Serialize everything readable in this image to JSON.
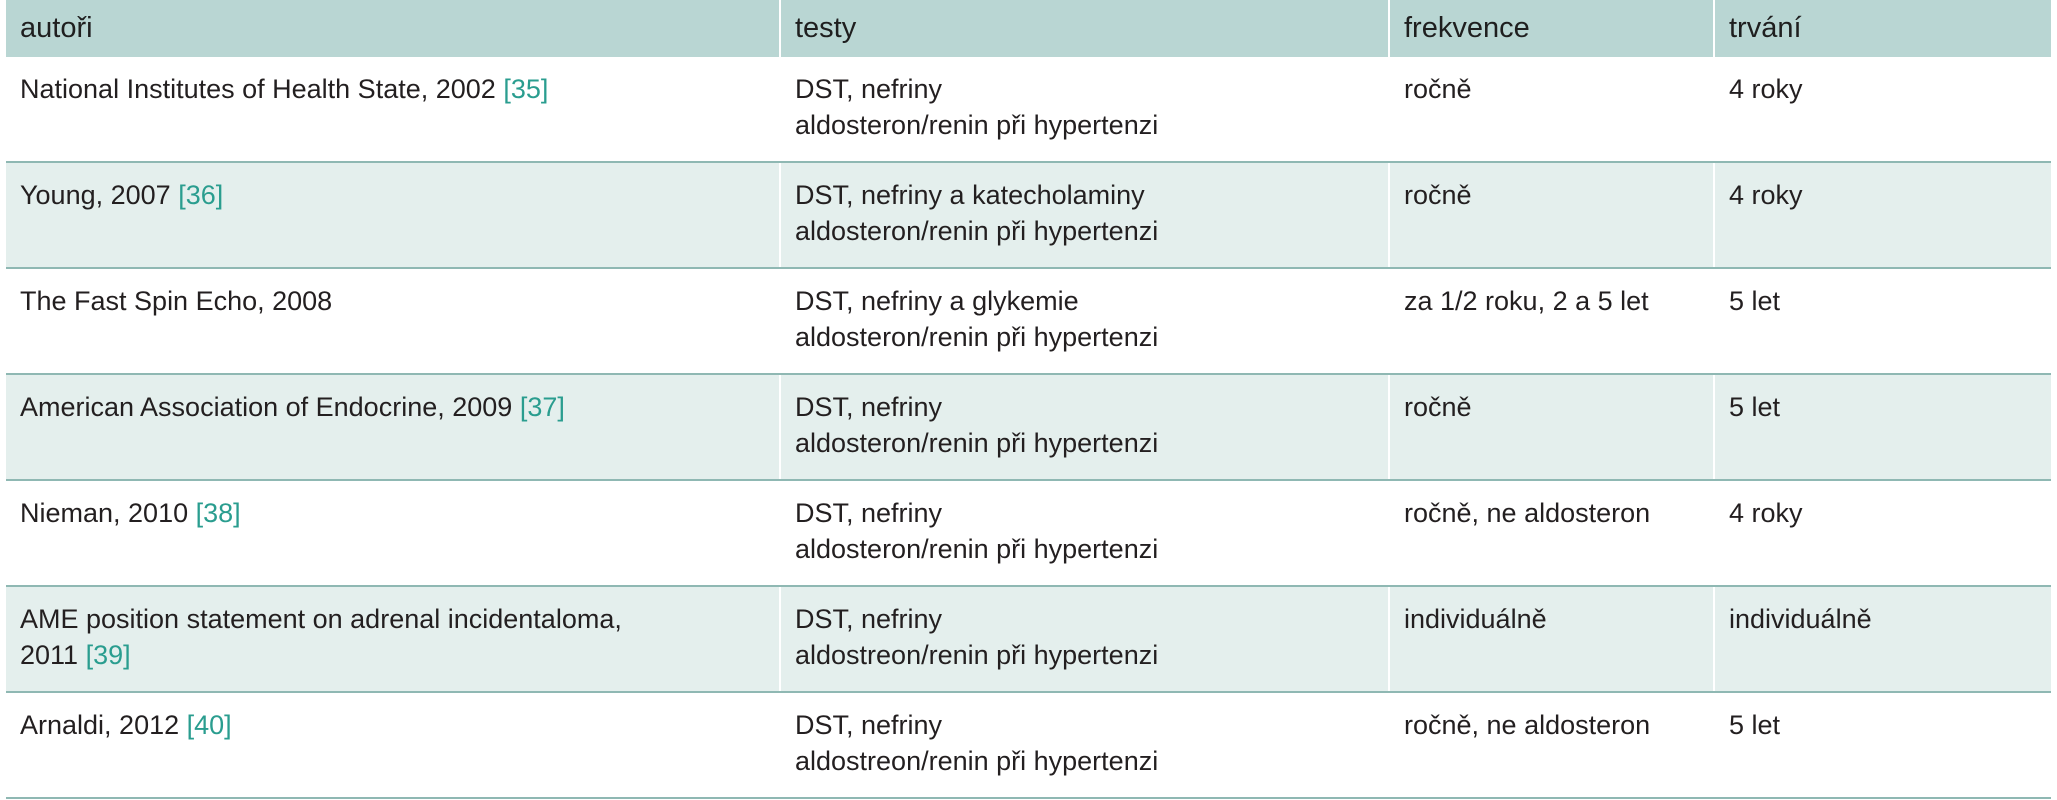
{
  "table": {
    "headers": [
      "autoři",
      "testy",
      "frekvence",
      "trvání"
    ],
    "rows": [
      {
        "author": "National Institutes of Health State, 2002",
        "author_line2": "",
        "ref": "[35]",
        "tests_line1": "DST, nefriny",
        "tests_line2": "aldosteron/renin při hypertenzi",
        "frequency": "ročně",
        "duration": "4 roky"
      },
      {
        "author": "Young, 2007",
        "author_line2": "",
        "ref": "[36]",
        "tests_line1": "DST, nefriny a katecholaminy",
        "tests_line2": "aldosteron/renin při hypertenzi",
        "frequency": "ročně",
        "duration": "4 roky"
      },
      {
        "author": "The Fast Spin Echo, 2008",
        "author_line2": "",
        "ref": "",
        "tests_line1": "DST, nefriny a glykemie",
        "tests_line2": "aldosteron/renin při hypertenzi",
        "frequency": "za 1/2 roku, 2 a 5 let",
        "duration": "5 let"
      },
      {
        "author": "American Association of Endocrine, 2009",
        "author_line2": "",
        "ref": "[37]",
        "tests_line1": "DST, nefriny",
        "tests_line2": "aldosteron/renin při hypertenzi",
        "frequency": "ročně",
        "duration": "5 let"
      },
      {
        "author": "Nieman, 2010",
        "author_line2": "",
        "ref": "[38]",
        "tests_line1": "DST, nefriny",
        "tests_line2": "aldosteron/renin při hypertenzi",
        "frequency": "ročně, ne aldosteron",
        "duration": "4 roky"
      },
      {
        "author": "AME position statement on adrenal incidentaloma,",
        "author_line2": "2011",
        "ref": "[39]",
        "tests_line1": "DST, nefriny",
        "tests_line2": "aldostreon/renin při hypertenzi",
        "frequency": "individuálně",
        "duration": "individuálně"
      },
      {
        "author": "Arnaldi, 2012",
        "author_line2": "",
        "ref": "[40]",
        "tests_line1": "DST, nefriny",
        "tests_line2": "aldostreon/renin při hypertenzi",
        "frequency": "ročně, ne aldosteron",
        "duration": "5 let"
      }
    ]
  },
  "colors": {
    "header_bg": "#b9d6d3",
    "stripe_bg": "#e4efed",
    "rule": "#8fb8b3",
    "reference_link": "#2a9d8f"
  }
}
